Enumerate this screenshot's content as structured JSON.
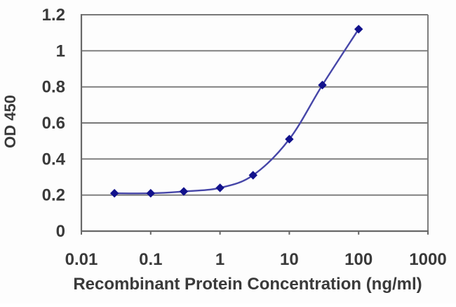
{
  "figure": {
    "description": "ELISA standard curve line chart",
    "background_color": "#fdfdfd"
  },
  "chart_data": {
    "type": "line",
    "series": [
      {
        "name": "standard-curve",
        "x": [
          0.03,
          0.1,
          0.3,
          1,
          3,
          10,
          30,
          100
        ],
        "y": [
          0.21,
          0.21,
          0.22,
          0.24,
          0.31,
          0.51,
          0.81,
          1.12
        ]
      }
    ],
    "title": "",
    "xlabel": "Recombinant Protein Concentration (ng/ml)",
    "ylabel": "OD 450",
    "x_scale": "log",
    "y_scale": "linear",
    "xlim": [
      0.01,
      1000
    ],
    "ylim": [
      0,
      1.2
    ],
    "x_ticks": [
      "0.01",
      "0.1",
      "1",
      "10",
      "100",
      "1000"
    ],
    "y_ticks": [
      "0",
      "0.2",
      "0.4",
      "0.6",
      "0.8",
      "1",
      "1.2"
    ],
    "grid": "horizontal-only",
    "legend": "none",
    "marker": "diamond",
    "line_shape": "smooth",
    "colors": {
      "line": "#4646a8",
      "marker": "#12128c",
      "grid": "#787878",
      "axis": "#686868",
      "text": "#3a3a3a",
      "background": "#fdfdfd"
    }
  }
}
